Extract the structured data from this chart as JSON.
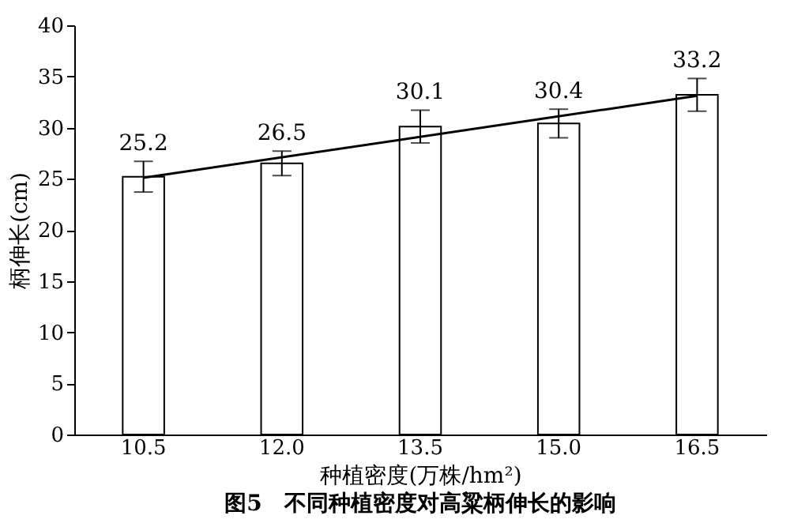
{
  "chart_data": {
    "type": "bar",
    "title": "图5　不同种植密度对高粱柄伸长的影响",
    "xlabel": "种植密度(万株/hm²)",
    "ylabel": "柄伸长(cm)",
    "categories": [
      "10.5",
      "12.0",
      "13.5",
      "15.0",
      "16.5"
    ],
    "series": [
      {
        "color": "#ffffff",
        "values": [
          25.2,
          26.5,
          30.1,
          30.4,
          33.2
        ],
        "errors": [
          1.5,
          1.2,
          1.6,
          1.4,
          1.6
        ],
        "value_labels": [
          "25.2",
          "26.5",
          "30.1",
          "30.4",
          "33.2"
        ]
      },
      {
        "type": "line",
        "color": "#000000",
        "x": [
          "10.5",
          "16.5"
        ],
        "values": [
          25.1,
          33.1
        ]
      }
    ],
    "ylim": [
      0,
      40
    ],
    "yticks": [
      0,
      5,
      10,
      15,
      20,
      25,
      30,
      35,
      40
    ],
    "grid": false
  }
}
